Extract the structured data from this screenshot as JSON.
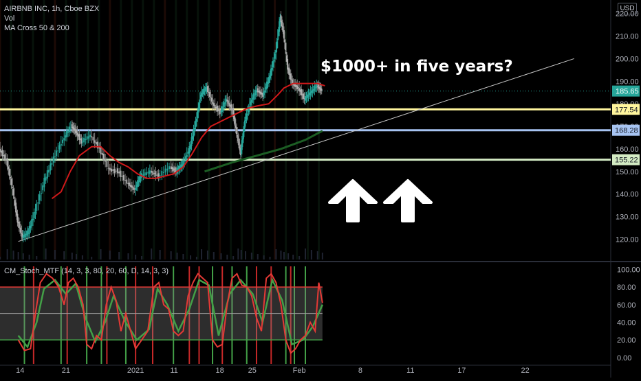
{
  "header": {
    "symbol_line": "AIRBNB INC, 1h, Cboe BZX",
    "vol_label": "Vol",
    "ma_label": "MA Cross 50 & 200",
    "currency": "USD"
  },
  "annotation": "$1000+ in five years?",
  "icons": [
    "up-arrow-icon",
    "up-arrow-icon"
  ],
  "colors": {
    "bg": "#000000",
    "ma50": "#d0191a",
    "ma200": "#1c5e24",
    "trendline": "#c8c8c8",
    "level_yellow": "#fff59d",
    "level_blue": "#a7c4f2",
    "level_green": "#d4ecc4",
    "last_price": "#26a69a",
    "stoch_line": "#e53935",
    "stoch_green": "#43a047"
  },
  "chart_data": [
    {
      "type": "candlestick",
      "title": "AIRBNB INC, 1h, Cboe BZX",
      "ylim": [
        111,
        226
      ],
      "y_ticks": [
        "220.00",
        "210.00",
        "200.00",
        "190.00",
        "180.00",
        "170.00",
        "160.00",
        "150.00",
        "140.00",
        "130.00",
        "120.00"
      ],
      "x_ticks": [
        "14",
        "21",
        "2021",
        "11",
        "18",
        "25",
        "Feb",
        "8",
        "11",
        "17",
        "22"
      ],
      "x_tick_fracs": [
        0.033,
        0.108,
        0.222,
        0.285,
        0.36,
        0.413,
        0.49,
        0.59,
        0.672,
        0.756,
        0.86
      ],
      "price_path": [
        [
          0.0,
          160
        ],
        [
          0.012,
          155
        ],
        [
          0.022,
          142
        ],
        [
          0.03,
          128
        ],
        [
          0.038,
          121
        ],
        [
          0.048,
          123
        ],
        [
          0.06,
          133
        ],
        [
          0.075,
          146
        ],
        [
          0.09,
          156
        ],
        [
          0.105,
          164
        ],
        [
          0.118,
          170
        ],
        [
          0.125,
          168
        ],
        [
          0.135,
          163
        ],
        [
          0.15,
          166
        ],
        [
          0.165,
          160
        ],
        [
          0.18,
          151
        ],
        [
          0.195,
          150
        ],
        [
          0.21,
          145
        ],
        [
          0.222,
          142
        ],
        [
          0.232,
          148
        ],
        [
          0.248,
          150
        ],
        [
          0.262,
          148
        ],
        [
          0.28,
          152
        ],
        [
          0.29,
          150
        ],
        [
          0.3,
          153
        ],
        [
          0.312,
          160
        ],
        [
          0.322,
          172
        ],
        [
          0.33,
          184
        ],
        [
          0.34,
          187
        ],
        [
          0.35,
          180
        ],
        [
          0.362,
          176
        ],
        [
          0.372,
          182
        ],
        [
          0.382,
          177
        ],
        [
          0.39,
          165
        ],
        [
          0.395,
          158
        ],
        [
          0.402,
          172
        ],
        [
          0.412,
          181
        ],
        [
          0.422,
          186
        ],
        [
          0.432,
          184
        ],
        [
          0.442,
          191
        ],
        [
          0.452,
          202
        ],
        [
          0.46,
          218
        ],
        [
          0.465,
          212
        ],
        [
          0.472,
          196
        ],
        [
          0.48,
          189
        ],
        [
          0.49,
          187
        ],
        [
          0.5,
          182
        ],
        [
          0.51,
          185
        ],
        [
          0.52,
          188
        ],
        [
          0.528,
          186
        ]
      ],
      "ma50_path": [
        [
          0.085,
          138
        ],
        [
          0.1,
          141
        ],
        [
          0.115,
          150
        ],
        [
          0.13,
          157
        ],
        [
          0.15,
          161
        ],
        [
          0.165,
          161
        ],
        [
          0.18,
          157
        ],
        [
          0.195,
          154
        ],
        [
          0.21,
          152
        ],
        [
          0.225,
          149
        ],
        [
          0.24,
          147
        ],
        [
          0.255,
          147
        ],
        [
          0.27,
          148
        ],
        [
          0.285,
          149
        ],
        [
          0.3,
          152
        ],
        [
          0.315,
          158
        ],
        [
          0.33,
          165
        ],
        [
          0.345,
          170
        ],
        [
          0.36,
          172
        ],
        [
          0.375,
          174
        ],
        [
          0.39,
          176
        ],
        [
          0.405,
          178
        ],
        [
          0.42,
          179
        ],
        [
          0.44,
          180
        ],
        [
          0.455,
          184
        ],
        [
          0.465,
          187
        ],
        [
          0.48,
          189
        ],
        [
          0.5,
          189
        ],
        [
          0.52,
          189
        ],
        [
          0.532,
          188
        ]
      ],
      "ma200_path": [
        [
          0.335,
          150
        ],
        [
          0.38,
          154
        ],
        [
          0.42,
          157
        ],
        [
          0.46,
          160
        ],
        [
          0.5,
          164
        ],
        [
          0.528,
          168
        ]
      ],
      "trendline": [
        [
          0.03,
          119
        ],
        [
          0.94,
          200
        ]
      ],
      "last_price": 185.65,
      "levels": [
        {
          "value": 177.54,
          "label": "177.54",
          "color_key": "level_yellow"
        },
        {
          "value": 168.28,
          "label": "168.28",
          "color_key": "level_blue"
        },
        {
          "value": 155.22,
          "label": "155.22",
          "color_key": "level_green"
        }
      ],
      "grid": false
    },
    {
      "type": "line",
      "title": "CM_Stoch_MTF (14, 3, 3, 80, 20, 60, D, 14, 3, 3)",
      "ylim": [
        -4,
        105
      ],
      "y_ticks": [
        "100.00",
        "80.00",
        "60.00",
        "40.00",
        "20.00",
        "0.00"
      ],
      "upper_band": 80,
      "lower_band": 20,
      "mid_band": 50,
      "k_path": [
        [
          0.03,
          20
        ],
        [
          0.04,
          8
        ],
        [
          0.05,
          10
        ],
        [
          0.058,
          50
        ],
        [
          0.066,
          85
        ],
        [
          0.076,
          95
        ],
        [
          0.086,
          90
        ],
        [
          0.096,
          80
        ],
        [
          0.105,
          60
        ],
        [
          0.112,
          85
        ],
        [
          0.12,
          90
        ],
        [
          0.128,
          80
        ],
        [
          0.136,
          60
        ],
        [
          0.142,
          15
        ],
        [
          0.15,
          10
        ],
        [
          0.158,
          25
        ],
        [
          0.166,
          20
        ],
        [
          0.174,
          60
        ],
        [
          0.182,
          80
        ],
        [
          0.19,
          65
        ],
        [
          0.198,
          30
        ],
        [
          0.206,
          50
        ],
        [
          0.214,
          30
        ],
        [
          0.222,
          10
        ],
        [
          0.232,
          20
        ],
        [
          0.242,
          30
        ],
        [
          0.252,
          80
        ],
        [
          0.26,
          85
        ],
        [
          0.268,
          60
        ],
        [
          0.276,
          55
        ],
        [
          0.284,
          30
        ],
        [
          0.292,
          25
        ],
        [
          0.3,
          30
        ],
        [
          0.308,
          70
        ],
        [
          0.316,
          85
        ],
        [
          0.324,
          95
        ],
        [
          0.332,
          90
        ],
        [
          0.34,
          85
        ],
        [
          0.348,
          20
        ],
        [
          0.356,
          12
        ],
        [
          0.364,
          15
        ],
        [
          0.372,
          60
        ],
        [
          0.38,
          90
        ],
        [
          0.388,
          95
        ],
        [
          0.396,
          82
        ],
        [
          0.404,
          80
        ],
        [
          0.412,
          70
        ],
        [
          0.42,
          45
        ],
        [
          0.428,
          30
        ],
        [
          0.436,
          90
        ],
        [
          0.444,
          95
        ],
        [
          0.452,
          85
        ],
        [
          0.46,
          60
        ],
        [
          0.468,
          20
        ],
        [
          0.476,
          5
        ],
        [
          0.484,
          10
        ],
        [
          0.492,
          20
        ],
        [
          0.5,
          25
        ],
        [
          0.508,
          40
        ],
        [
          0.516,
          30
        ],
        [
          0.522,
          85
        ],
        [
          0.528,
          62
        ]
      ],
      "d_path": [
        [
          0.03,
          25
        ],
        [
          0.045,
          12
        ],
        [
          0.06,
          40
        ],
        [
          0.072,
          78
        ],
        [
          0.09,
          88
        ],
        [
          0.108,
          72
        ],
        [
          0.124,
          84
        ],
        [
          0.14,
          45
        ],
        [
          0.156,
          18
        ],
        [
          0.172,
          40
        ],
        [
          0.186,
          70
        ],
        [
          0.204,
          42
        ],
        [
          0.224,
          20
        ],
        [
          0.244,
          32
        ],
        [
          0.258,
          78
        ],
        [
          0.274,
          60
        ],
        [
          0.292,
          30
        ],
        [
          0.31,
          55
        ],
        [
          0.326,
          88
        ],
        [
          0.342,
          82
        ],
        [
          0.358,
          25
        ],
        [
          0.376,
          72
        ],
        [
          0.394,
          88
        ],
        [
          0.414,
          72
        ],
        [
          0.43,
          40
        ],
        [
          0.446,
          88
        ],
        [
          0.462,
          65
        ],
        [
          0.478,
          15
        ],
        [
          0.496,
          20
        ],
        [
          0.512,
          35
        ],
        [
          0.528,
          60
        ]
      ],
      "green_vlines": [
        0.04,
        0.1,
        0.142,
        0.166,
        0.206,
        0.284,
        0.348,
        0.38,
        0.404,
        0.468,
        0.482,
        0.5
      ],
      "red_vlines": [
        0.055,
        0.11,
        0.175,
        0.222,
        0.25,
        0.31,
        0.326,
        0.364,
        0.42,
        0.444,
        0.476
      ]
    }
  ]
}
